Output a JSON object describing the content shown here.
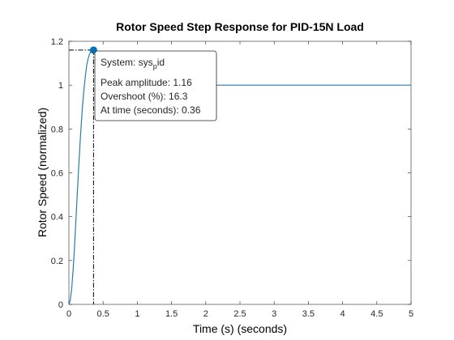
{
  "chart_data": {
    "type": "line",
    "title": "Rotor Speed Step Response for PID-15N Load",
    "xlabel": "Time (s) (seconds)",
    "ylabel": "Rotor Speed (normalized)",
    "xlim": [
      0,
      5
    ],
    "ylim": [
      0,
      1.2
    ],
    "x_ticks": [
      "0",
      "0.5",
      "1",
      "1.5",
      "2",
      "2.5",
      "3",
      "3.5",
      "4",
      "4.5",
      "5"
    ],
    "y_ticks": [
      "0",
      "0.2",
      "0.4",
      "0.6",
      "0.8",
      "1",
      "1.2"
    ],
    "grid": false,
    "line_color": "#2b7ca8",
    "marker_color": "#0072bd",
    "series": [
      {
        "x": [
          0,
          0.02,
          0.04,
          0.06,
          0.08,
          0.1,
          0.12,
          0.14,
          0.16,
          0.18,
          0.2,
          0.22,
          0.24,
          0.26,
          0.28,
          0.3,
          0.32,
          0.34,
          0.36,
          0.38,
          0.4,
          0.42,
          0.45,
          0.5,
          0.55,
          0.6,
          0.7,
          0.8,
          1.0,
          1.5,
          2,
          3,
          4,
          5
        ],
        "y": [
          0,
          0.02,
          0.07,
          0.15,
          0.25,
          0.37,
          0.49,
          0.61,
          0.72,
          0.82,
          0.91,
          0.98,
          1.04,
          1.09,
          1.12,
          1.14,
          1.155,
          1.16,
          1.16,
          1.155,
          1.14,
          1.12,
          1.08,
          1.03,
          1.0,
          1.0,
          1.0,
          1.0,
          1.0,
          1.0,
          1.0,
          1.0,
          1.0,
          1.0
        ]
      }
    ],
    "peak": {
      "x": 0.36,
      "y": 1.16
    }
  },
  "datatip": {
    "system_prefix": "System: sys",
    "system_sub": "p",
    "system_suffix": "id",
    "peak_line": "Peak amplitude: 1.16",
    "overshoot_line": "Overshoot (%): 16.3",
    "time_line": "At time (seconds): 0.36"
  }
}
